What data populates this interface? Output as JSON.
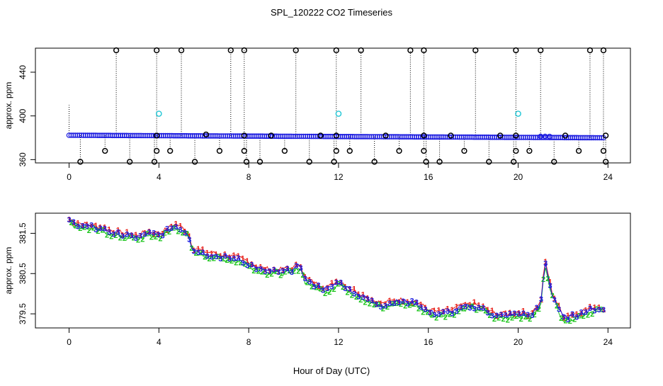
{
  "chart_data": [
    {
      "type": "scatter",
      "title": "SPL_120222  CO2 Timeseries",
      "xlabel": "",
      "ylabel": "approx. ppm",
      "xlim": [
        -1.5,
        25
      ],
      "ylim": [
        357,
        462
      ],
      "x_ticks": [
        "0",
        "4",
        "8",
        "12",
        "16",
        "20",
        "24"
      ],
      "x_tick_values": [
        0,
        4,
        8,
        12,
        16,
        20,
        24
      ],
      "y_ticks": [
        "360",
        "400",
        "440"
      ],
      "y_tick_values": [
        360,
        400,
        440
      ],
      "baseline": {
        "start": 382.3,
        "end": 380.0,
        "x_start": 0,
        "x_end": 23.8
      },
      "spikes_high": [
        {
          "x": 2.1,
          "y": 460
        },
        {
          "x": 3.9,
          "y": 460
        },
        {
          "x": 5.0,
          "y": 460
        },
        {
          "x": 7.2,
          "y": 460
        },
        {
          "x": 7.8,
          "y": 460
        },
        {
          "x": 10.1,
          "y": 460
        },
        {
          "x": 11.9,
          "y": 460
        },
        {
          "x": 13.0,
          "y": 460
        },
        {
          "x": 15.2,
          "y": 460
        },
        {
          "x": 15.8,
          "y": 460
        },
        {
          "x": 18.1,
          "y": 460
        },
        {
          "x": 19.9,
          "y": 460
        },
        {
          "x": 21.0,
          "y": 460
        },
        {
          "x": 23.2,
          "y": 460
        },
        {
          "x": 23.8,
          "y": 460
        }
      ],
      "spikes_low": [
        {
          "x": 0.5,
          "y": 358
        },
        {
          "x": 1.6,
          "y": 368
        },
        {
          "x": 2.7,
          "y": 358
        },
        {
          "x": 3.8,
          "y": 358
        },
        {
          "x": 3.9,
          "y": 368
        },
        {
          "x": 4.5,
          "y": 368
        },
        {
          "x": 5.6,
          "y": 358
        },
        {
          "x": 6.7,
          "y": 368
        },
        {
          "x": 7.8,
          "y": 368
        },
        {
          "x": 7.9,
          "y": 358
        },
        {
          "x": 8.5,
          "y": 358
        },
        {
          "x": 9.6,
          "y": 368
        },
        {
          "x": 10.7,
          "y": 358
        },
        {
          "x": 11.8,
          "y": 358
        },
        {
          "x": 11.9,
          "y": 368
        },
        {
          "x": 12.5,
          "y": 368
        },
        {
          "x": 13.6,
          "y": 358
        },
        {
          "x": 14.7,
          "y": 368
        },
        {
          "x": 15.8,
          "y": 368
        },
        {
          "x": 15.9,
          "y": 358
        },
        {
          "x": 16.5,
          "y": 358
        },
        {
          "x": 17.6,
          "y": 368
        },
        {
          "x": 18.7,
          "y": 358
        },
        {
          "x": 19.8,
          "y": 358
        },
        {
          "x": 19.9,
          "y": 368
        },
        {
          "x": 20.5,
          "y": 368
        },
        {
          "x": 21.6,
          "y": 358
        },
        {
          "x": 22.7,
          "y": 368
        },
        {
          "x": 23.8,
          "y": 368
        },
        {
          "x": 23.9,
          "y": 358
        }
      ],
      "markers_cyan": [
        {
          "x": 4.0,
          "y": 402
        },
        {
          "x": 12.0,
          "y": 402
        },
        {
          "x": 20.0,
          "y": 402
        }
      ],
      "markers_mid": [
        {
          "x": 3.9,
          "y": 382
        },
        {
          "x": 6.1,
          "y": 383
        },
        {
          "x": 7.8,
          "y": 382
        },
        {
          "x": 9.0,
          "y": 382
        },
        {
          "x": 11.2,
          "y": 382
        },
        {
          "x": 11.9,
          "y": 382
        },
        {
          "x": 14.1,
          "y": 382
        },
        {
          "x": 15.8,
          "y": 382
        },
        {
          "x": 17.0,
          "y": 382
        },
        {
          "x": 19.2,
          "y": 382
        },
        {
          "x": 19.9,
          "y": 382
        },
        {
          "x": 22.1,
          "y": 382
        },
        {
          "x": 23.9,
          "y": 382
        }
      ]
    },
    {
      "type": "line",
      "title": "",
      "xlabel": "Hour of Day (UTC)",
      "ylabel": "approx. ppm",
      "xlim": [
        -1.5,
        25
      ],
      "ylim": [
        379.15,
        382.0
      ],
      "x_ticks": [
        "0",
        "4",
        "8",
        "12",
        "16",
        "20",
        "24"
      ],
      "x_tick_values": [
        0,
        4,
        8,
        12,
        16,
        20,
        24
      ],
      "y_ticks": [
        "379.5",
        "380.5",
        "381.5"
      ],
      "y_tick_values": [
        379.5,
        380.5,
        381.5
      ],
      "series": [
        {
          "name": "1",
          "color": "#e8201a"
        },
        {
          "name": "2",
          "color": "#19c419"
        },
        {
          "name": "3",
          "color": "#1a1ae0"
        }
      ],
      "x": [
        0.0,
        0.5,
        1.0,
        1.5,
        2.0,
        2.5,
        3.0,
        3.5,
        4.0,
        4.5,
        4.7,
        5.0,
        5.3,
        5.5,
        6.0,
        6.5,
        7.0,
        7.5,
        8.0,
        8.5,
        9.0,
        9.5,
        10.0,
        10.3,
        10.5,
        11.0,
        11.5,
        12.0,
        12.5,
        13.0,
        13.5,
        14.0,
        14.5,
        15.0,
        15.5,
        16.0,
        16.5,
        17.0,
        17.5,
        18.0,
        18.5,
        19.0,
        19.5,
        20.0,
        20.5,
        21.0,
        21.2,
        21.5,
        22.0,
        22.5,
        23.0,
        23.5,
        23.8
      ],
      "y": [
        381.8,
        381.7,
        381.65,
        381.6,
        381.5,
        381.45,
        381.4,
        381.5,
        381.45,
        381.6,
        381.7,
        381.6,
        381.5,
        381.1,
        381.0,
        380.95,
        380.9,
        380.85,
        380.75,
        380.6,
        380.55,
        380.55,
        380.6,
        380.7,
        380.35,
        380.2,
        380.1,
        380.3,
        380.1,
        379.95,
        379.8,
        379.7,
        379.8,
        379.8,
        379.75,
        379.55,
        379.5,
        379.55,
        379.65,
        379.7,
        379.6,
        379.45,
        379.45,
        379.5,
        379.45,
        379.7,
        380.8,
        380.0,
        379.4,
        379.45,
        379.55,
        379.65,
        379.6
      ]
    }
  ]
}
